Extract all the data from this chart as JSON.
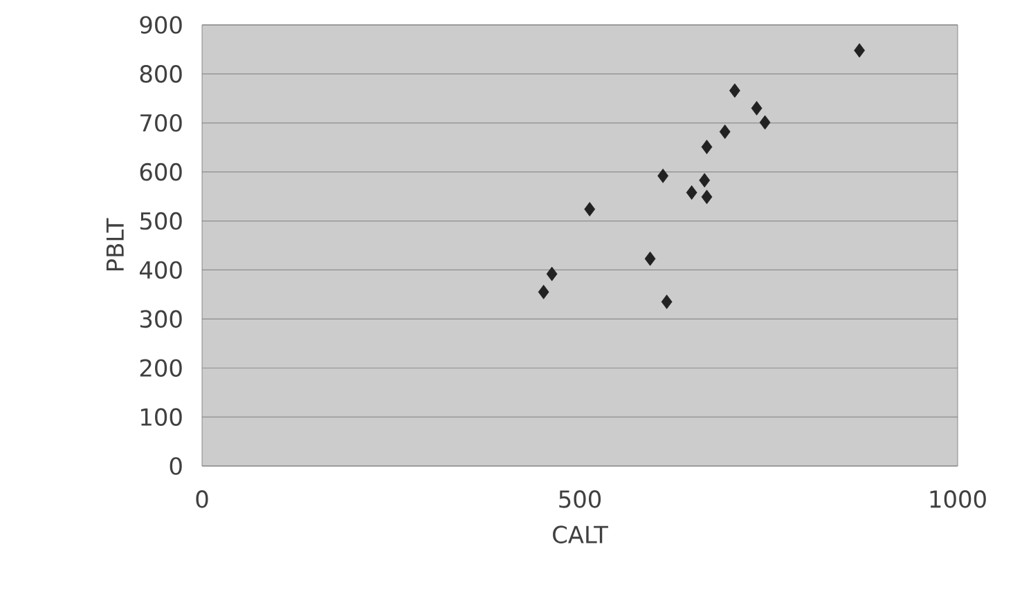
{
  "chart_data": {
    "type": "scatter",
    "xlabel": "CALT",
    "ylabel": "PBLT",
    "x": [
      452,
      463,
      513,
      593,
      615,
      610,
      648,
      665,
      668,
      668,
      692,
      705,
      734,
      745,
      870
    ],
    "values": [
      355,
      392,
      524,
      423,
      335,
      592,
      558,
      583,
      549,
      651,
      682,
      766,
      730,
      701,
      848
    ],
    "color": "#222222",
    "marker": "diamond",
    "grid": "y",
    "xlim": [
      0,
      1000
    ],
    "xticks": [
      0,
      500,
      1000
    ],
    "ylim": [
      0,
      900
    ],
    "yticks": [
      0,
      100,
      200,
      300,
      400,
      500,
      600,
      700,
      800,
      900
    ]
  }
}
